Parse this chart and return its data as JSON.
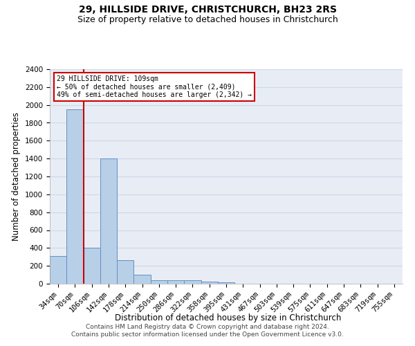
{
  "title": "29, HILLSIDE DRIVE, CHRISTCHURCH, BH23 2RS",
  "subtitle": "Size of property relative to detached houses in Christchurch",
  "xlabel": "Distribution of detached houses by size in Christchurch",
  "ylabel": "Number of detached properties",
  "categories": [
    "34sqm",
    "70sqm",
    "106sqm",
    "142sqm",
    "178sqm",
    "214sqm",
    "250sqm",
    "286sqm",
    "322sqm",
    "358sqm",
    "395sqm",
    "431sqm",
    "467sqm",
    "503sqm",
    "539sqm",
    "575sqm",
    "611sqm",
    "647sqm",
    "683sqm",
    "719sqm",
    "755sqm"
  ],
  "values": [
    310,
    1950,
    400,
    1400,
    265,
    100,
    42,
    35,
    35,
    20,
    15,
    0,
    0,
    0,
    0,
    0,
    0,
    0,
    0,
    0,
    0
  ],
  "bar_color": "#b8cfe8",
  "bar_edge_color": "#6090c0",
  "red_line_x": 1.5,
  "property_label": "29 HILLSIDE DRIVE: 109sqm",
  "annotation_line1": "← 50% of detached houses are smaller (2,409)",
  "annotation_line2": "49% of semi-detached houses are larger (2,342) →",
  "annotation_box_color": "#ffffff",
  "annotation_box_edge_color": "#cc0000",
  "red_line_color": "#cc0000",
  "ylim": [
    0,
    2400
  ],
  "yticks": [
    0,
    200,
    400,
    600,
    800,
    1000,
    1200,
    1400,
    1600,
    1800,
    2000,
    2200,
    2400
  ],
  "footer1": "Contains HM Land Registry data © Crown copyright and database right 2024.",
  "footer2": "Contains public sector information licensed under the Open Government Licence v3.0.",
  "grid_color": "#cdd8ea",
  "bg_color": "#e8edf5",
  "title_fontsize": 10,
  "subtitle_fontsize": 9,
  "axis_label_fontsize": 8.5,
  "tick_fontsize": 7.5,
  "footer_fontsize": 6.5
}
